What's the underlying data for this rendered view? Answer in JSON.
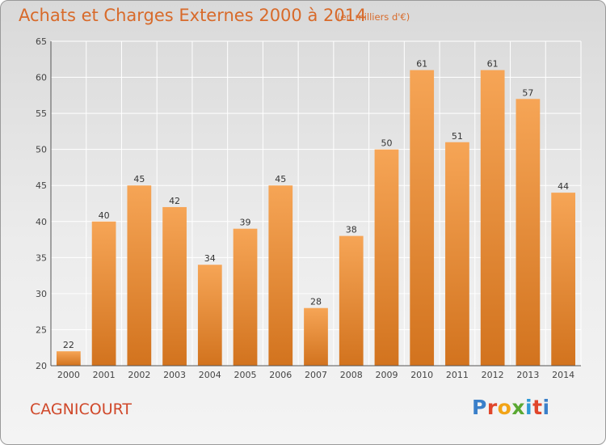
{
  "header": {
    "title": "Achats et Charges Externes 2000 à 2014",
    "unit": "(en milliers d'€)"
  },
  "footer": {
    "commune": "CAGNICOURT",
    "logo": "Proxiti"
  },
  "colors": {
    "bar_top": "#f6a556",
    "bar_bottom": "#d2731e",
    "title": "#d86a2a",
    "commune": "#d0482a",
    "grid": "#ffffff"
  },
  "chart_data": {
    "type": "bar",
    "title": "Achats et Charges Externes 2000 à 2014",
    "subtitle": "(en milliers d'€)",
    "xlabel": "",
    "ylabel": "",
    "categories": [
      "2000",
      "2001",
      "2002",
      "2003",
      "2004",
      "2005",
      "2006",
      "2007",
      "2008",
      "2009",
      "2010",
      "2011",
      "2012",
      "2013",
      "2014"
    ],
    "values": [
      22,
      40,
      45,
      42,
      34,
      39,
      45,
      28,
      38,
      50,
      61,
      51,
      61,
      57,
      44
    ],
    "ylim": [
      20,
      65
    ],
    "yticks": [
      20,
      25,
      30,
      35,
      40,
      45,
      50,
      55,
      60,
      65
    ],
    "grid": true,
    "data_labels": true
  }
}
